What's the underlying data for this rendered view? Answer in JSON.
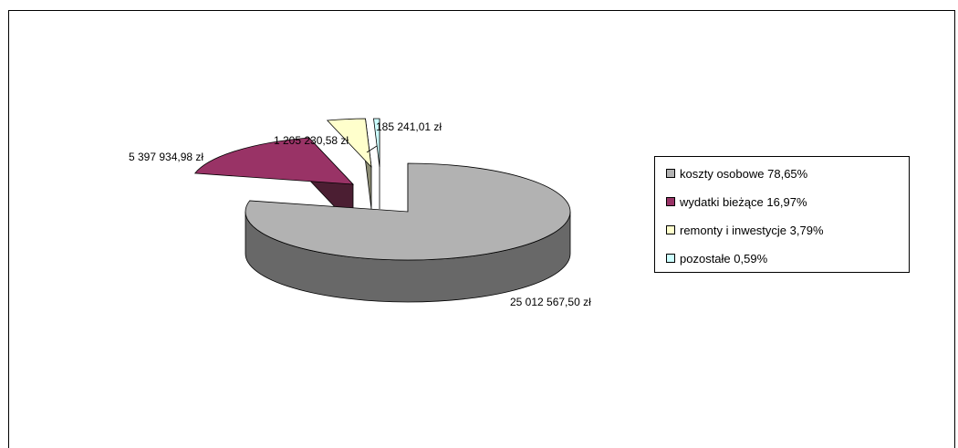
{
  "chart_data": {
    "type": "pie",
    "style": "3d-exploded",
    "title": "",
    "legend_position": "right",
    "slices": [
      {
        "label": "koszty osobowe",
        "percent_label": "78,65%",
        "value": 25012567.5,
        "value_label": "25 012 567,50 zł",
        "color": "#b2b2b2",
        "side_color": "#686868"
      },
      {
        "label": "wydatki bieżące",
        "percent_label": "16,97%",
        "value": 5397934.98,
        "value_label": "5 397 934,98 zł",
        "color": "#993366",
        "side_color": "#4b1e32"
      },
      {
        "label": "remonty i inwestycje",
        "percent_label": "3,79%",
        "value": 1205230.58,
        "value_label": "1 205 230,58 zł",
        "color": "#ffffcc",
        "side_color": "#8c8c74"
      },
      {
        "label": "pozostałe",
        "percent_label": "0,59%",
        "value": 185241.01,
        "value_label": "185 241,01 zł",
        "color": "#ccffff",
        "side_color": "#4a7c86"
      }
    ]
  }
}
